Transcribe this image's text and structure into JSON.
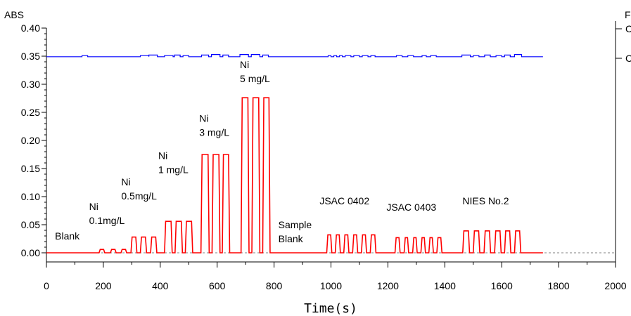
{
  "chart_data": {
    "type": "line",
    "ylabel": "ABS",
    "xlabel": "Time(s)",
    "right_axis_label": "F",
    "right_axis_tick_labels": [
      "C",
      "C"
    ],
    "xlim": [
      0,
      2000
    ],
    "ylim": [
      -0.005,
      0.4
    ],
    "x_ticks": [
      0,
      200,
      400,
      600,
      800,
      1000,
      1200,
      1400,
      1600,
      1800,
      2000
    ],
    "y_ticks": [
      0.0,
      0.05,
      0.1,
      0.15,
      0.2,
      0.25,
      0.3,
      0.35,
      0.4
    ],
    "grid": false,
    "baseline_reference": {
      "y": 0.0,
      "style": "dashed",
      "color": "#808080"
    },
    "series": [
      {
        "color": "#ff0000",
        "x_end": 1745,
        "baseline": 0.0,
        "peak_groups": [
          {
            "label_lines": [
              "Blank"
            ],
            "label_x": 30,
            "label_y": 0.024,
            "label_size": "large",
            "peaks": [
              {
                "start": 185,
                "end": 205,
                "h": 0.006
              },
              {
                "start": 225,
                "end": 245,
                "h": 0.006
              },
              {
                "start": 262,
                "end": 282,
                "h": 0.006
              }
            ]
          },
          {
            "label_lines": [
              "Ni",
              "0.1mg/L"
            ],
            "label_x": 150,
            "label_y": 0.076,
            "label_size": "normal",
            "peaks": []
          },
          {
            "label_lines": [
              "Ni",
              "0.5mg/L"
            ],
            "label_x": 263,
            "label_y": 0.12,
            "label_size": "normal",
            "peaks": [
              {
                "start": 297,
                "end": 318,
                "h": 0.028
              },
              {
                "start": 330,
                "end": 352,
                "h": 0.028
              },
              {
                "start": 366,
                "end": 388,
                "h": 0.028
              }
            ]
          },
          {
            "label_lines": [
              "Ni",
              "1 mg/L"
            ],
            "label_x": 393,
            "label_y": 0.167,
            "label_size": "normal",
            "peaks": [
              {
                "start": 415,
                "end": 442,
                "h": 0.056
              },
              {
                "start": 452,
                "end": 478,
                "h": 0.056
              },
              {
                "start": 488,
                "end": 514,
                "h": 0.056
              }
            ]
          },
          {
            "label_lines": [
              "Ni",
              "3 mg/L"
            ],
            "label_x": 537,
            "label_y": 0.233,
            "label_size": "normal",
            "peaks": [
              {
                "start": 543,
                "end": 572,
                "h": 0.175
              },
              {
                "start": 582,
                "end": 610,
                "h": 0.175
              },
              {
                "start": 618,
                "end": 644,
                "h": 0.175
              }
            ]
          },
          {
            "label_lines": [
              "Ni",
              "5 mg/L"
            ],
            "label_x": 680,
            "label_y": 0.329,
            "label_size": "normal",
            "peaks": [
              {
                "start": 684,
                "end": 712,
                "h": 0.276
              },
              {
                "start": 722,
                "end": 750,
                "h": 0.276
              },
              {
                "start": 760,
                "end": 786,
                "h": 0.276
              }
            ]
          },
          {
            "label_lines": [
              "Sample",
              "Blank"
            ],
            "label_x": 815,
            "label_y": 0.044,
            "label_size": "normal",
            "peaks": []
          },
          {
            "label_lines": [
              "JSAC 0402"
            ],
            "label_x": 960,
            "label_y": 0.086,
            "label_size": "normal",
            "peaks": [
              {
                "start": 985,
                "end": 1003,
                "h": 0.032
              },
              {
                "start": 1015,
                "end": 1033,
                "h": 0.032
              },
              {
                "start": 1045,
                "end": 1063,
                "h": 0.032
              },
              {
                "start": 1076,
                "end": 1094,
                "h": 0.032
              },
              {
                "start": 1107,
                "end": 1125,
                "h": 0.032
              },
              {
                "start": 1138,
                "end": 1158,
                "h": 0.032
              }
            ]
          },
          {
            "label_lines": [
              "JSAC 0403"
            ],
            "label_x": 1195,
            "label_y": 0.075,
            "label_size": "normal",
            "peaks": [
              {
                "start": 1225,
                "end": 1243,
                "h": 0.027
              },
              {
                "start": 1257,
                "end": 1273,
                "h": 0.027
              },
              {
                "start": 1287,
                "end": 1303,
                "h": 0.027
              },
              {
                "start": 1316,
                "end": 1332,
                "h": 0.027
              },
              {
                "start": 1344,
                "end": 1360,
                "h": 0.027
              },
              {
                "start": 1372,
                "end": 1390,
                "h": 0.027
              }
            ]
          },
          {
            "label_lines": [
              "NIES No.2"
            ],
            "label_x": 1462,
            "label_y": 0.086,
            "label_size": "normal",
            "peaks": [
              {
                "start": 1463,
                "end": 1487,
                "h": 0.039
              },
              {
                "start": 1500,
                "end": 1523,
                "h": 0.039
              },
              {
                "start": 1538,
                "end": 1561,
                "h": 0.039
              },
              {
                "start": 1575,
                "end": 1598,
                "h": 0.039
              },
              {
                "start": 1610,
                "end": 1632,
                "h": 0.039
              },
              {
                "start": 1645,
                "end": 1667,
                "h": 0.039
              }
            ]
          }
        ]
      },
      {
        "color": "#0000ff",
        "x_end": 1745,
        "baseline": 0.349,
        "bumps": [
          {
            "start": 125,
            "end": 145,
            "h": 0.351
          },
          {
            "start": 330,
            "end": 360,
            "h": 0.351
          },
          {
            "start": 360,
            "end": 390,
            "h": 0.352
          },
          {
            "start": 415,
            "end": 445,
            "h": 0.351
          },
          {
            "start": 450,
            "end": 470,
            "h": 0.352
          },
          {
            "start": 480,
            "end": 500,
            "h": 0.351
          },
          {
            "start": 545,
            "end": 570,
            "h": 0.352
          },
          {
            "start": 580,
            "end": 610,
            "h": 0.353
          },
          {
            "start": 620,
            "end": 640,
            "h": 0.352
          },
          {
            "start": 680,
            "end": 710,
            "h": 0.353
          },
          {
            "start": 720,
            "end": 750,
            "h": 0.353
          },
          {
            "start": 760,
            "end": 780,
            "h": 0.352
          },
          {
            "start": 990,
            "end": 1000,
            "h": 0.351
          },
          {
            "start": 1010,
            "end": 1020,
            "h": 0.351
          },
          {
            "start": 1030,
            "end": 1040,
            "h": 0.351
          },
          {
            "start": 1050,
            "end": 1070,
            "h": 0.351
          },
          {
            "start": 1080,
            "end": 1100,
            "h": 0.351
          },
          {
            "start": 1110,
            "end": 1130,
            "h": 0.351
          },
          {
            "start": 1140,
            "end": 1155,
            "h": 0.351
          },
          {
            "start": 1230,
            "end": 1250,
            "h": 0.351
          },
          {
            "start": 1270,
            "end": 1290,
            "h": 0.351
          },
          {
            "start": 1320,
            "end": 1335,
            "h": 0.351
          },
          {
            "start": 1350,
            "end": 1370,
            "h": 0.351
          },
          {
            "start": 1460,
            "end": 1490,
            "h": 0.352
          },
          {
            "start": 1500,
            "end": 1520,
            "h": 0.351
          },
          {
            "start": 1540,
            "end": 1560,
            "h": 0.352
          },
          {
            "start": 1580,
            "end": 1600,
            "h": 0.351
          },
          {
            "start": 1610,
            "end": 1630,
            "h": 0.352
          },
          {
            "start": 1645,
            "end": 1670,
            "h": 0.353
          }
        ]
      }
    ]
  }
}
